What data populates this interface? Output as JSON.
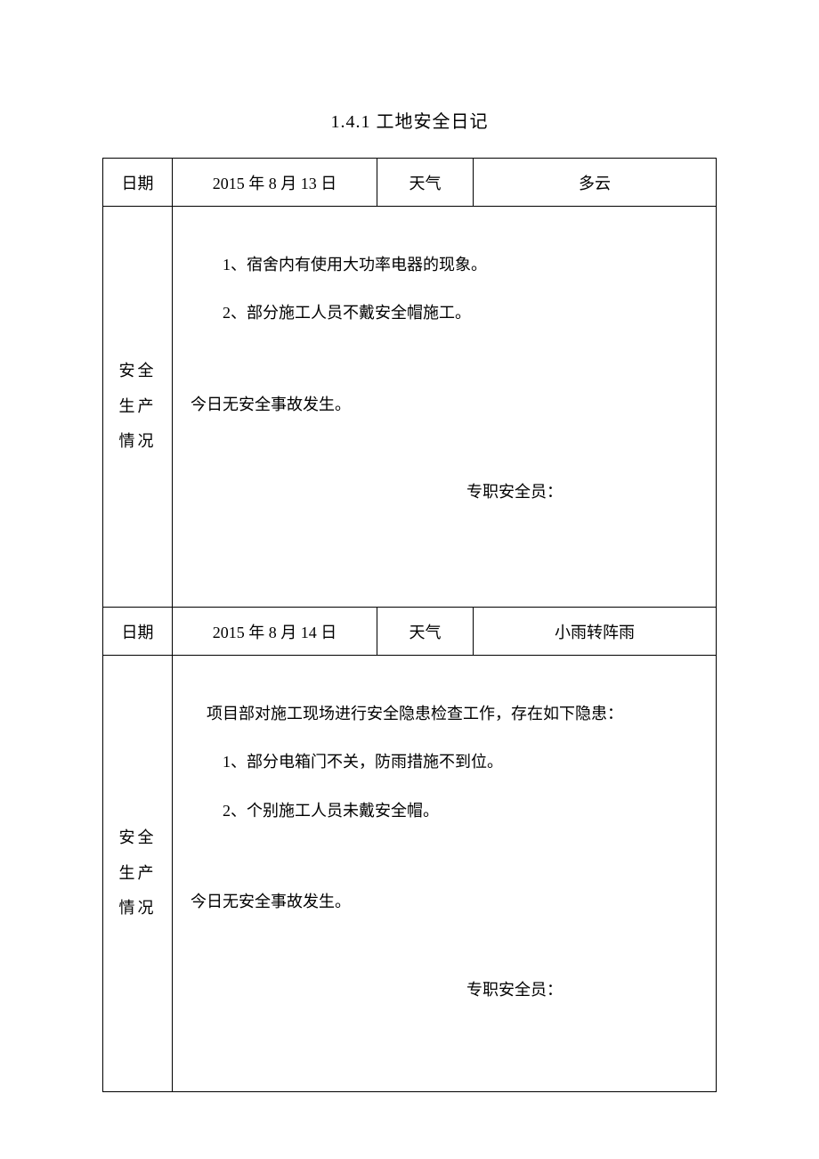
{
  "title": "1.4.1 工地安全日记",
  "labels": {
    "date": "日期",
    "weather": "天气",
    "safety_status": "安全生产情况",
    "officer_prefix": "专职安全员："
  },
  "entries": [
    {
      "date": "2015 年 8 月 13 日",
      "weather": "多云",
      "intro": "",
      "issues": [
        "1、宿舍内有使用大功率电器的现象。",
        "2、部分施工人员不戴安全帽施工。"
      ],
      "summary": "今日无安全事故发生。"
    },
    {
      "date": "2015 年 8 月 14 日",
      "weather": "小雨转阵雨",
      "intro": "项目部对施工现场进行安全隐患检查工作，存在如下隐患：",
      "issues": [
        "1、部分电箱门不关，防雨措施不到位。",
        "2、个别施工人员未戴安全帽。"
      ],
      "summary": "今日无安全事故发生。"
    }
  ],
  "style": {
    "font_family": "SimSun",
    "title_fontsize": 20,
    "body_fontsize": 18,
    "border_color": "#000000",
    "background_color": "#ffffff",
    "text_color": "#000000"
  }
}
